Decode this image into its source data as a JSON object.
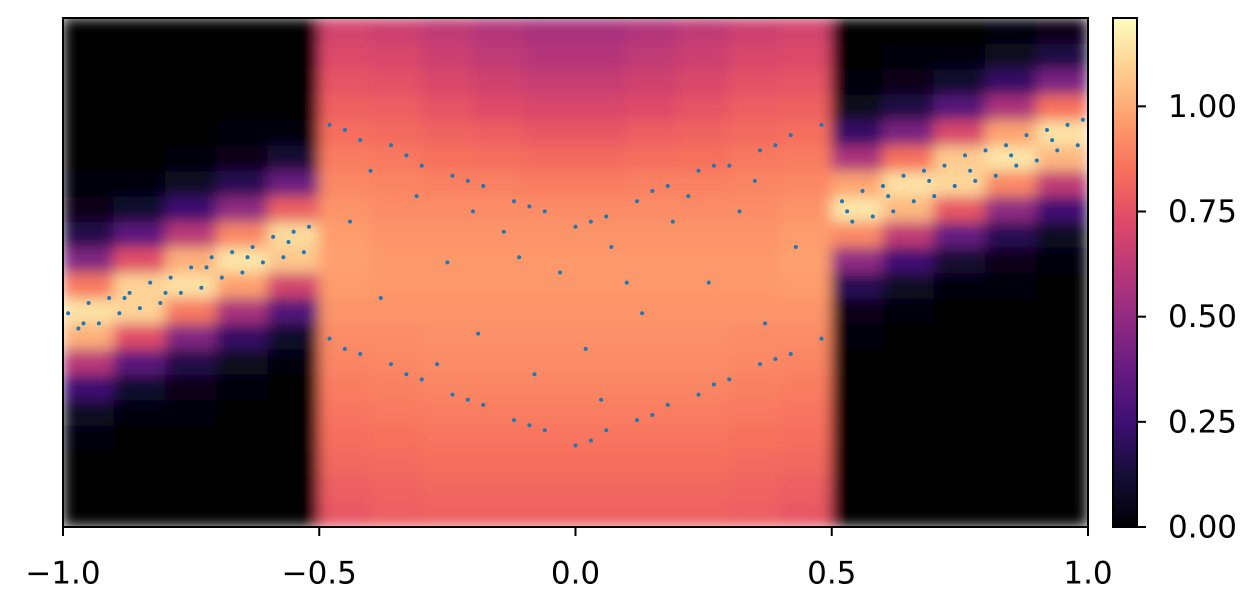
{
  "chart_data": {
    "type": "heatmap",
    "colormap": "magma",
    "xlim": [
      -1,
      1
    ],
    "ylim": [
      -0.5,
      0.5
    ],
    "xticks": [
      {
        "value": -1,
        "label": "−1.0"
      },
      {
        "value": -0.5,
        "label": "−0.5"
      },
      {
        "value": 0,
        "label": "0.0"
      },
      {
        "value": 0.5,
        "label": "0.5"
      },
      {
        "value": 1,
        "label": "1.0"
      }
    ],
    "clim": [
      0,
      1.21
    ],
    "cticks": [
      {
        "value": 0,
        "label": "0.00"
      },
      {
        "value": 0.25,
        "label": "0.25"
      },
      {
        "value": 0.5,
        "label": "0.50"
      },
      {
        "value": 0.75,
        "label": "0.75"
      },
      {
        "value": 1,
        "label": "1.00"
      }
    ],
    "x": [
      -0.95,
      -0.85,
      -0.75,
      -0.65,
      -0.55,
      -0.45,
      -0.35,
      -0.25,
      -0.15,
      -0.05,
      0.05,
      0.15,
      0.25,
      0.35,
      0.45,
      0.55,
      0.65,
      0.75,
      0.85,
      0.95
    ],
    "y": [
      -0.475,
      -0.425,
      -0.375,
      -0.325,
      -0.275,
      -0.225,
      -0.175,
      -0.125,
      -0.075,
      -0.025,
      0.025,
      0.075,
      0.125,
      0.175,
      0.225,
      0.275,
      0.325,
      0.375,
      0.425,
      0.475
    ],
    "z": [
      [
        0,
        0,
        0,
        0.01,
        0.07,
        0.25,
        0.61,
        1.01,
        1.14,
        0.87,
        0.45,
        0.16,
        0.04,
        0.01,
        0,
        0,
        0,
        0,
        0,
        0
      ],
      [
        0,
        0,
        0,
        0,
        0.02,
        0.1,
        0.34,
        0.74,
        1.1,
        1.1,
        0.74,
        0.34,
        0.1,
        0.02,
        0,
        0,
        0,
        0,
        0,
        0
      ],
      [
        0,
        0,
        0,
        0,
        0.01,
        0.04,
        0.16,
        0.45,
        0.87,
        1.14,
        1.01,
        0.61,
        0.25,
        0.07,
        0.01,
        0,
        0,
        0,
        0,
        0
      ],
      [
        0,
        0,
        0,
        0,
        0,
        0.01,
        0.06,
        0.22,
        0.56,
        0.97,
        1.15,
        0.91,
        0.49,
        0.18,
        0.05,
        0.01,
        0,
        0,
        0,
        0
      ],
      [
        0,
        0,
        0,
        0,
        0,
        0,
        0.02,
        0.09,
        0.3,
        0.69,
        1.07,
        1.12,
        0.79,
        0.38,
        0.12,
        0.03,
        0,
        0,
        0,
        0
      ],
      [
        0.77,
        0.79,
        0.82,
        0.84,
        0.86,
        0.88,
        0.9,
        0.92,
        0.94,
        0.96,
        0.97,
        0.96,
        0.94,
        0.91,
        0.88,
        0.84,
        0.8,
        0.76,
        0.72,
        0.69
      ],
      [
        0.79,
        0.81,
        0.83,
        0.85,
        0.87,
        0.89,
        0.91,
        0.92,
        0.94,
        0.95,
        0.95,
        0.94,
        0.92,
        0.9,
        0.87,
        0.83,
        0.79,
        0.75,
        0.71,
        0.67
      ],
      [
        0.8,
        0.82,
        0.84,
        0.86,
        0.88,
        0.9,
        0.92,
        0.93,
        0.94,
        0.95,
        0.95,
        0.94,
        0.92,
        0.89,
        0.85,
        0.81,
        0.76,
        0.71,
        0.67,
        0.63
      ],
      [
        0.8,
        0.82,
        0.84,
        0.86,
        0.88,
        0.9,
        0.92,
        0.93,
        0.94,
        0.95,
        0.95,
        0.94,
        0.92,
        0.89,
        0.84,
        0.79,
        0.73,
        0.68,
        0.63,
        0.59
      ],
      [
        0.8,
        0.82,
        0.84,
        0.86,
        0.88,
        0.9,
        0.92,
        0.93,
        0.94,
        0.95,
        0.95,
        0.94,
        0.92,
        0.88,
        0.83,
        0.77,
        0.71,
        0.65,
        0.6,
        0.56
      ],
      [
        0.8,
        0.82,
        0.84,
        0.86,
        0.88,
        0.9,
        0.92,
        0.93,
        0.94,
        0.95,
        0.95,
        0.94,
        0.92,
        0.88,
        0.83,
        0.77,
        0.71,
        0.65,
        0.6,
        0.56
      ],
      [
        0.8,
        0.82,
        0.84,
        0.86,
        0.88,
        0.9,
        0.92,
        0.93,
        0.94,
        0.95,
        0.95,
        0.94,
        0.92,
        0.89,
        0.84,
        0.79,
        0.73,
        0.68,
        0.63,
        0.59
      ],
      [
        0.8,
        0.82,
        0.84,
        0.86,
        0.88,
        0.9,
        0.92,
        0.93,
        0.94,
        0.95,
        0.95,
        0.94,
        0.92,
        0.89,
        0.85,
        0.81,
        0.76,
        0.71,
        0.67,
        0.63
      ],
      [
        0.79,
        0.81,
        0.83,
        0.85,
        0.87,
        0.89,
        0.91,
        0.92,
        0.94,
        0.95,
        0.95,
        0.94,
        0.92,
        0.9,
        0.87,
        0.83,
        0.79,
        0.75,
        0.71,
        0.67
      ],
      [
        0.77,
        0.79,
        0.82,
        0.84,
        0.86,
        0.88,
        0.9,
        0.92,
        0.94,
        0.96,
        0.97,
        0.96,
        0.94,
        0.91,
        0.88,
        0.84,
        0.8,
        0.76,
        0.72,
        0.69
      ],
      [
        0,
        0,
        0,
        0,
        0,
        0,
        0,
        0.01,
        0.04,
        0.18,
        0.49,
        0.91,
        1.15,
        0.98,
        0.57,
        0.22,
        0.06,
        0.01,
        0,
        0
      ],
      [
        0,
        0,
        0,
        0,
        0,
        0,
        0,
        0,
        0.01,
        0.07,
        0.26,
        0.63,
        1.03,
        1.14,
        0.85,
        0.43,
        0.15,
        0.04,
        0.01,
        0
      ],
      [
        0,
        0,
        0,
        0,
        0,
        0,
        0,
        0,
        0,
        0.02,
        0.11,
        0.36,
        0.77,
        1.11,
        1.08,
        0.71,
        0.32,
        0.1,
        0.02,
        0
      ],
      [
        0,
        0,
        0,
        0,
        0,
        0,
        0,
        0,
        0,
        0.01,
        0.04,
        0.18,
        0.49,
        0.91,
        1.15,
        0.98,
        0.57,
        0.22,
        0.06,
        0.01
      ],
      [
        0,
        0,
        0,
        0,
        0,
        0,
        0,
        0,
        0,
        0,
        0.01,
        0.07,
        0.26,
        0.63,
        1.03,
        1.14,
        0.85,
        0.43,
        0.15,
        0.04
      ]
    ],
    "overlay": {
      "type": "scatter",
      "color": "#1f77b4",
      "x": [
        -0.99,
        -0.97,
        -0.95,
        -0.93,
        -0.91,
        -0.89,
        -0.87,
        -0.85,
        -0.83,
        -0.81,
        -0.79,
        -0.77,
        -0.75,
        -0.73,
        -0.71,
        -0.69,
        -0.67,
        -0.65,
        -0.63,
        -0.61,
        -0.59,
        -0.57,
        -0.55,
        -0.53,
        -0.52,
        -0.96,
        -0.88,
        -0.8,
        -0.72,
        -0.64,
        -0.56,
        -0.48,
        -0.42,
        -0.36,
        -0.3,
        -0.24,
        -0.18,
        -0.12,
        -0.06,
        0.0,
        0.06,
        0.12,
        0.18,
        0.24,
        0.3,
        0.36,
        0.42,
        0.48,
        -0.45,
        -0.33,
        -0.21,
        -0.09,
        0.03,
        0.15,
        0.27,
        0.39,
        -0.48,
        -0.42,
        -0.36,
        -0.3,
        -0.24,
        -0.18,
        -0.12,
        -0.06,
        0.0,
        0.06,
        0.12,
        0.18,
        0.24,
        0.3,
        0.36,
        0.42,
        0.48,
        -0.45,
        -0.33,
        -0.21,
        -0.09,
        0.03,
        0.15,
        0.27,
        0.39,
        -0.44,
        -0.38,
        -0.31,
        -0.25,
        -0.19,
        -0.14,
        -0.08,
        -0.03,
        0.02,
        0.07,
        0.13,
        0.19,
        0.26,
        0.32,
        0.37,
        0.43,
        -0.4,
        -0.27,
        -0.11,
        0.05,
        0.22,
        0.35,
        -0.2,
        0.1,
        0.52,
        0.54,
        0.56,
        0.58,
        0.6,
        0.62,
        0.64,
        0.66,
        0.68,
        0.7,
        0.72,
        0.74,
        0.76,
        0.78,
        0.8,
        0.82,
        0.84,
        0.86,
        0.88,
        0.9,
        0.92,
        0.94,
        0.96,
        0.98,
        0.99,
        0.53,
        0.61,
        0.69,
        0.77,
        0.85,
        0.93
      ],
      "y": [
        -0.08,
        -0.11,
        -0.06,
        -0.1,
        -0.05,
        -0.08,
        -0.04,
        -0.07,
        -0.02,
        -0.06,
        -0.01,
        -0.04,
        0.01,
        -0.03,
        0.03,
        -0.01,
        0.04,
        0.0,
        0.05,
        0.02,
        0.07,
        0.03,
        0.08,
        0.04,
        0.09,
        -0.1,
        -0.05,
        -0.04,
        0.01,
        0.03,
        0.06,
        0.29,
        0.26,
        0.25,
        0.21,
        0.19,
        0.17,
        0.14,
        0.12,
        0.09,
        0.11,
        0.14,
        0.17,
        0.2,
        0.21,
        0.24,
        0.27,
        0.29,
        0.28,
        0.23,
        0.18,
        0.13,
        0.1,
        0.16,
        0.21,
        0.25,
        -0.13,
        -0.16,
        -0.18,
        -0.21,
        -0.24,
        -0.26,
        -0.29,
        -0.31,
        -0.34,
        -0.31,
        -0.29,
        -0.26,
        -0.24,
        -0.21,
        -0.18,
        -0.16,
        -0.13,
        -0.15,
        -0.2,
        -0.25,
        -0.3,
        -0.33,
        -0.28,
        -0.22,
        -0.17,
        0.1,
        -0.05,
        0.15,
        0.02,
        -0.12,
        0.08,
        -0.2,
        0.0,
        -0.15,
        0.05,
        -0.08,
        0.1,
        -0.02,
        0.12,
        -0.1,
        0.05,
        0.2,
        -0.18,
        0.03,
        -0.25,
        0.15,
        0.18,
        0.12,
        -0.02,
        0.14,
        0.1,
        0.16,
        0.11,
        0.17,
        0.12,
        0.19,
        0.14,
        0.2,
        0.15,
        0.21,
        0.17,
        0.23,
        0.18,
        0.24,
        0.19,
        0.25,
        0.21,
        0.27,
        0.22,
        0.28,
        0.24,
        0.29,
        0.25,
        0.3,
        0.12,
        0.15,
        0.18,
        0.2,
        0.23,
        0.26
      ]
    }
  }
}
